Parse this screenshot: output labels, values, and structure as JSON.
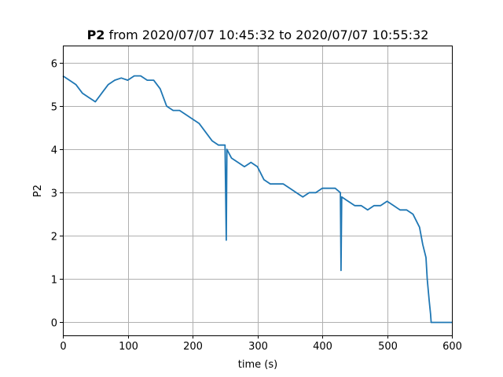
{
  "chart_data": {
    "type": "line",
    "title_bold": "P2",
    "title_rest": " from 2020/07/07 10:45:32 to 2020/07/07 10:55:32",
    "xlabel": "time (s)",
    "ylabel": "P2",
    "xlim": [
      0,
      600
    ],
    "ylim": [
      -0.3,
      6.4
    ],
    "xticks": [
      0,
      100,
      200,
      300,
      400,
      500,
      600
    ],
    "xtick_labels": [
      "0",
      "100",
      "200",
      "300",
      "400",
      "500",
      "600"
    ],
    "yticks": [
      0,
      1,
      2,
      3,
      4,
      5,
      6
    ],
    "ytick_labels": [
      "0",
      "1",
      "2",
      "3",
      "4",
      "5",
      "6"
    ],
    "grid": true,
    "series": [
      {
        "color": "#1f77b4",
        "x": [
          0,
          10,
          20,
          30,
          40,
          50,
          60,
          70,
          80,
          90,
          100,
          110,
          120,
          130,
          140,
          150,
          160,
          170,
          180,
          190,
          200,
          210,
          220,
          230,
          240,
          250,
          252,
          253,
          260,
          270,
          280,
          290,
          300,
          310,
          320,
          330,
          340,
          350,
          360,
          370,
          380,
          390,
          400,
          410,
          420,
          428,
          429,
          430,
          440,
          450,
          460,
          470,
          480,
          490,
          500,
          510,
          520,
          530,
          540,
          550,
          555,
          560,
          562,
          565,
          567,
          568,
          570,
          575,
          580,
          590,
          600
        ],
        "y": [
          5.7,
          5.6,
          5.5,
          5.3,
          5.2,
          5.1,
          5.3,
          5.5,
          5.6,
          5.65,
          5.6,
          5.7,
          5.7,
          5.6,
          5.6,
          5.4,
          5.0,
          4.9,
          4.9,
          4.8,
          4.7,
          4.6,
          4.4,
          4.2,
          4.1,
          4.1,
          1.9,
          4.0,
          3.8,
          3.7,
          3.6,
          3.7,
          3.6,
          3.3,
          3.2,
          3.2,
          3.2,
          3.1,
          3.0,
          2.9,
          3.0,
          3.0,
          3.1,
          3.1,
          3.1,
          3.0,
          1.2,
          2.9,
          2.8,
          2.7,
          2.7,
          2.6,
          2.7,
          2.7,
          2.8,
          2.7,
          2.6,
          2.6,
          2.5,
          2.2,
          1.8,
          1.5,
          1.0,
          0.5,
          0.2,
          0.0,
          0.0,
          0.0,
          0.0,
          0.0,
          0.0
        ]
      }
    ]
  }
}
